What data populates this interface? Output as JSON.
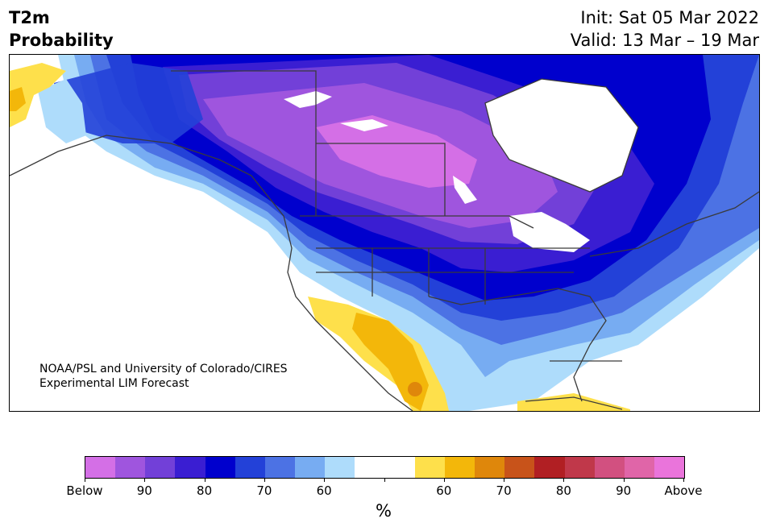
{
  "header": {
    "title_line1": "T2m",
    "title_line2": "Probability",
    "init": "Init: Sat 05 Mar 2022",
    "valid": "Valid: 13 Mar – 19 Mar"
  },
  "map": {
    "credit_line1": "NOAA/PSL and University of Colorado/CIRES",
    "credit_line2": "Experimental LIM Forecast"
  },
  "colorbar": {
    "colors": [
      "#d46fe6",
      "#9f55de",
      "#7240d8",
      "#3a1ed2",
      "#0000cd",
      "#2341d8",
      "#4c72e4",
      "#77acf2",
      "#aedcfb",
      "#ffffff",
      "#ffffff",
      "#fee04b",
      "#f3b70a",
      "#df870b",
      "#c8531a",
      "#b11f23",
      "#c0384a",
      "#d25080",
      "#e065a8",
      "#ea74db"
    ],
    "tick_labels": [
      "Below",
      "90",
      "80",
      "70",
      "60",
      "",
      "60",
      "70",
      "80",
      "90",
      "Above"
    ],
    "unit": "%"
  }
}
